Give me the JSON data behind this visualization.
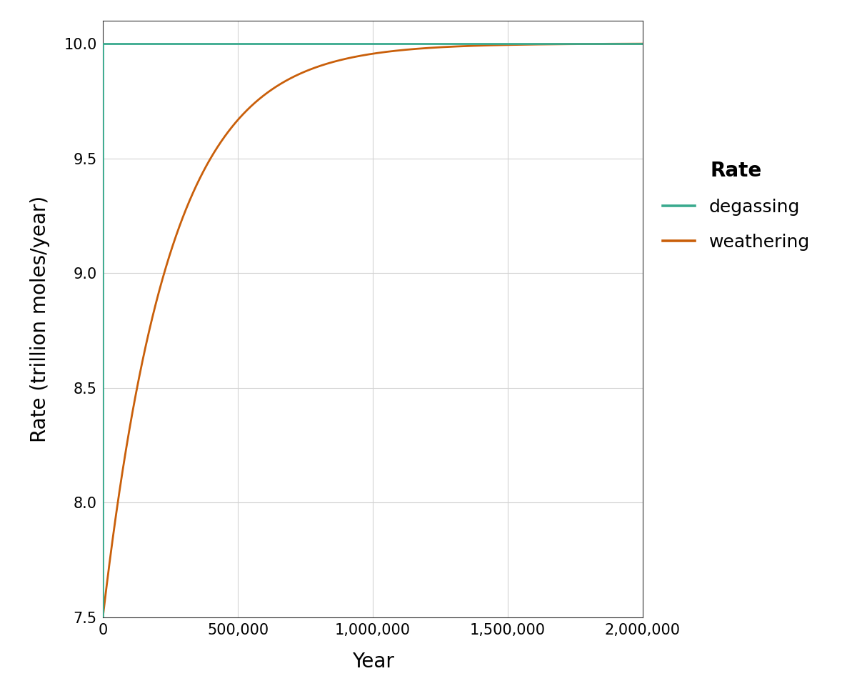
{
  "title": "",
  "xlabel": "Year",
  "ylabel": "Rate (trillion moles/year)",
  "xlim": [
    0,
    2000000
  ],
  "ylim": [
    7.5,
    10.1
  ],
  "yticks": [
    7.5,
    8.0,
    8.5,
    9.0,
    9.5,
    10.0
  ],
  "xticks": [
    0,
    500000,
    1000000,
    1500000,
    2000000
  ],
  "degassing_color": "#3aaa8e",
  "weathering_color": "#c95f0a",
  "weathering_start_y": 7.5,
  "weathering_end_y": 10.0,
  "weathering_tau": 248000,
  "line_width": 2.0,
  "legend_title": "Rate",
  "legend_labels": [
    "degassing",
    "weathering"
  ],
  "background_color": "#ffffff",
  "grid_color": "#d3d3d3",
  "axis_label_fontsize": 20,
  "tick_fontsize": 15,
  "legend_fontsize": 18,
  "legend_title_fontsize": 20
}
